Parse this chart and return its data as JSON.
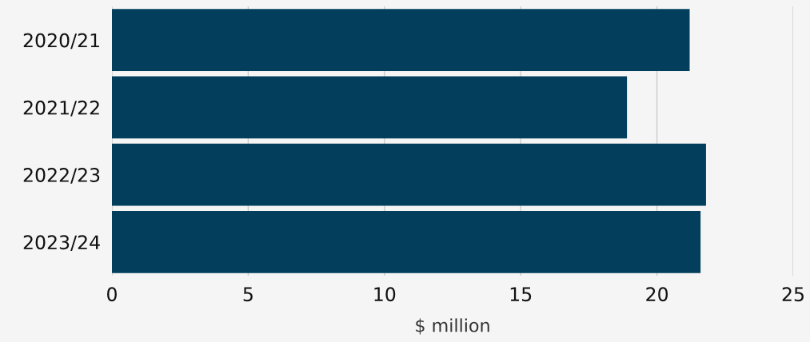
{
  "chart_data": {
    "type": "bar",
    "orientation": "horizontal",
    "categories": [
      "2020/21",
      "2021/22",
      "2022/23",
      "2023/24"
    ],
    "values": [
      21.2,
      18.9,
      21.8,
      21.6
    ],
    "color": "#033f5c",
    "xlabel": "$ million",
    "xlim": [
      0,
      25
    ],
    "xticks": [
      0,
      5,
      10,
      15,
      20,
      25
    ],
    "grid": "x"
  }
}
